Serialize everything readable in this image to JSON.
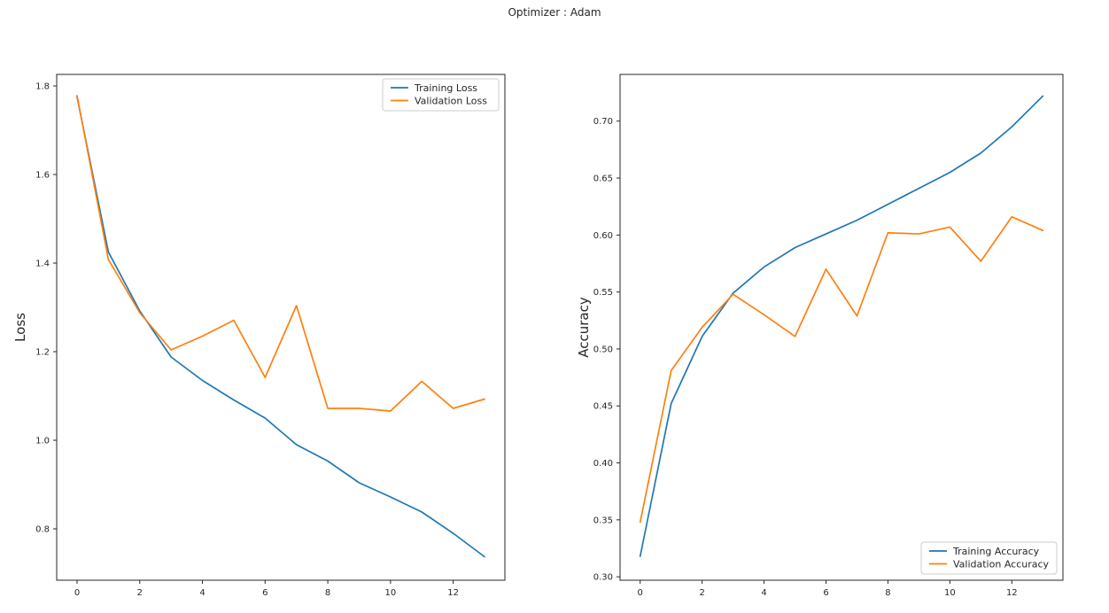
{
  "figure": {
    "title": "Optimizer : Adam"
  },
  "chart_data": [
    {
      "type": "line",
      "title": "",
      "xlabel": "",
      "ylabel": "Loss",
      "x": [
        0,
        1,
        2,
        3,
        4,
        5,
        6,
        7,
        8,
        9,
        10,
        11,
        12,
        13
      ],
      "series": [
        {
          "name": "Training Loss",
          "color": "#1f77b4",
          "values": [
            1.775,
            1.425,
            1.292,
            1.188,
            1.135,
            1.091,
            1.05,
            0.99,
            0.953,
            0.904,
            0.872,
            0.838,
            0.79,
            0.737
          ]
        },
        {
          "name": "Validation Loss",
          "color": "#ff7f0e",
          "values": [
            1.778,
            1.408,
            1.288,
            1.204,
            1.235,
            1.271,
            1.142,
            1.304,
            1.072,
            1.072,
            1.066,
            1.133,
            1.072,
            1.093
          ]
        }
      ],
      "xlim": [
        -0.65,
        13.65
      ],
      "ylim": [
        0.684,
        1.826
      ],
      "xticks": [
        0,
        2,
        4,
        6,
        8,
        10,
        12
      ],
      "xtick_labels": [
        "0",
        "2",
        "4",
        "6",
        "8",
        "10",
        "12"
      ],
      "yticks": [
        0.8,
        1.0,
        1.2,
        1.4,
        1.6,
        1.8
      ],
      "ytick_labels": [
        "0.8",
        "1.0",
        "1.2",
        "1.4",
        "1.6",
        "1.8"
      ],
      "grid": false,
      "legend_position": "top-right"
    },
    {
      "type": "line",
      "title": "",
      "xlabel": "",
      "ylabel": "Accuracy",
      "x": [
        0,
        1,
        2,
        3,
        4,
        5,
        6,
        7,
        8,
        9,
        10,
        11,
        12,
        13
      ],
      "series": [
        {
          "name": "Training Accuracy",
          "color": "#1f77b4",
          "values": [
            0.318,
            0.452,
            0.511,
            0.549,
            0.572,
            0.589,
            0.601,
            0.613,
            0.627,
            0.641,
            0.655,
            0.672,
            0.695,
            0.722
          ]
        },
        {
          "name": "Validation Accuracy",
          "color": "#ff7f0e",
          "values": [
            0.348,
            0.481,
            0.519,
            0.548,
            0.53,
            0.511,
            0.57,
            0.529,
            0.602,
            0.601,
            0.607,
            0.577,
            0.616,
            0.604
          ]
        }
      ],
      "xlim": [
        -0.65,
        13.65
      ],
      "ylim": [
        0.297,
        0.741
      ],
      "xticks": [
        0,
        2,
        4,
        6,
        8,
        10,
        12
      ],
      "xtick_labels": [
        "0",
        "2",
        "4",
        "6",
        "8",
        "10",
        "12"
      ],
      "yticks": [
        0.3,
        0.35,
        0.4,
        0.45,
        0.5,
        0.55,
        0.6,
        0.65,
        0.7
      ],
      "ytick_labels": [
        "0.30",
        "0.35",
        "0.40",
        "0.45",
        "0.50",
        "0.55",
        "0.60",
        "0.65",
        "0.70"
      ],
      "grid": false,
      "legend_position": "bottom-right"
    }
  ]
}
